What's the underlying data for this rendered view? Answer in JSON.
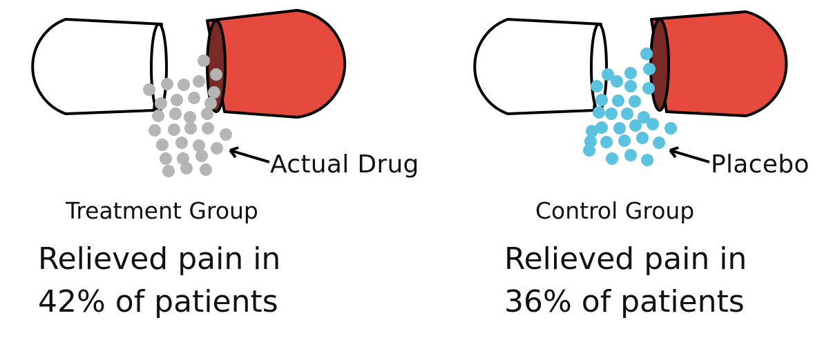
{
  "colors": {
    "capsule_outline": "#000000",
    "capsule_white": "#ffffff",
    "capsule_red": "#e64a3d",
    "capsule_red_interior": "#7a2a24",
    "drug_dot": "#b5b5b5",
    "placebo_dot": "#5bc3e0",
    "text": "#111111"
  },
  "groups": [
    {
      "pointer_label": "Actual Drug",
      "group_label": "Treatment Group",
      "result_line1": "Relieved pain in",
      "result_line2": "42% of patients",
      "relief_percent": 42,
      "dot_color": "#b5b5b5"
    },
    {
      "pointer_label": "Placebo",
      "group_label": "Control Group",
      "result_line1": "Relieved pain in",
      "result_line2": "36% of patients",
      "relief_percent": 36,
      "dot_color": "#5bc3e0"
    }
  ]
}
